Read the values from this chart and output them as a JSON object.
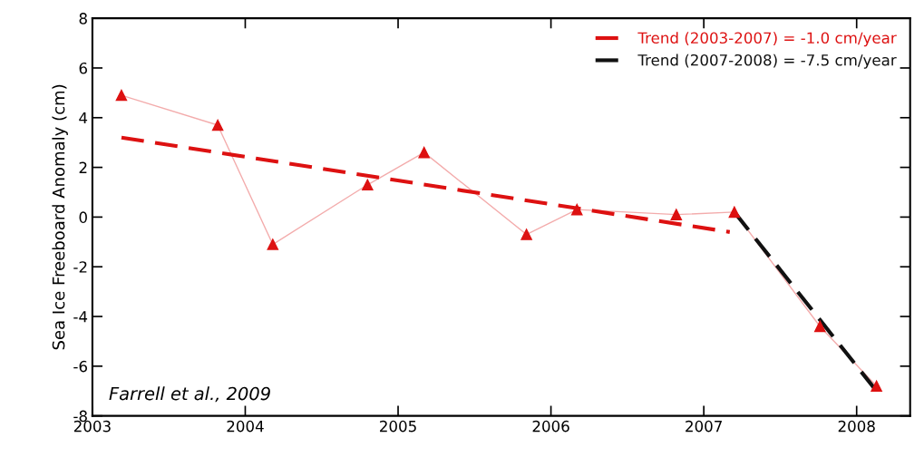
{
  "chart_data": {
    "type": "line",
    "ylabel": "Sea Ice Freeboard Anomaly (cm)",
    "xlim": [
      2003,
      2008.35
    ],
    "xticks": [
      2003,
      2004,
      2005,
      2006,
      2007,
      2008
    ],
    "ylim": [
      -8,
      8
    ],
    "yticks": [
      -8,
      -6,
      -4,
      -2,
      0,
      2,
      4,
      6,
      8
    ],
    "grid": false,
    "legend": "top right",
    "marker": "triangle",
    "annotations": [
      "Farrell et al., 2009"
    ],
    "series": [
      {
        "color": "#dd1111",
        "x": [
          2003.19,
          2003.82,
          2004.18,
          2004.8,
          2005.17,
          2005.84,
          2006.17,
          2006.82,
          2007.2,
          2007.76,
          2008.13
        ],
        "values": [
          4.9,
          3.7,
          -1.1,
          1.3,
          2.6,
          -0.7,
          0.3,
          0.1,
          0.2,
          -4.4,
          -6.8
        ]
      },
      {
        "name": "Trend (2003-2007) = -1.0 cm/year",
        "color": "#dd1111",
        "marker": "none",
        "line_style": "dashed",
        "x": [
          2003.19,
          2007.17
        ],
        "values": [
          3.2,
          -0.6
        ]
      },
      {
        "name": "Trend (2007-2008) = -7.5 cm/year",
        "color": "#111111",
        "marker": "none",
        "line_style": "dashed",
        "x": [
          2007.2,
          2008.13
        ],
        "values": [
          0.2,
          -7.0
        ]
      }
    ]
  }
}
